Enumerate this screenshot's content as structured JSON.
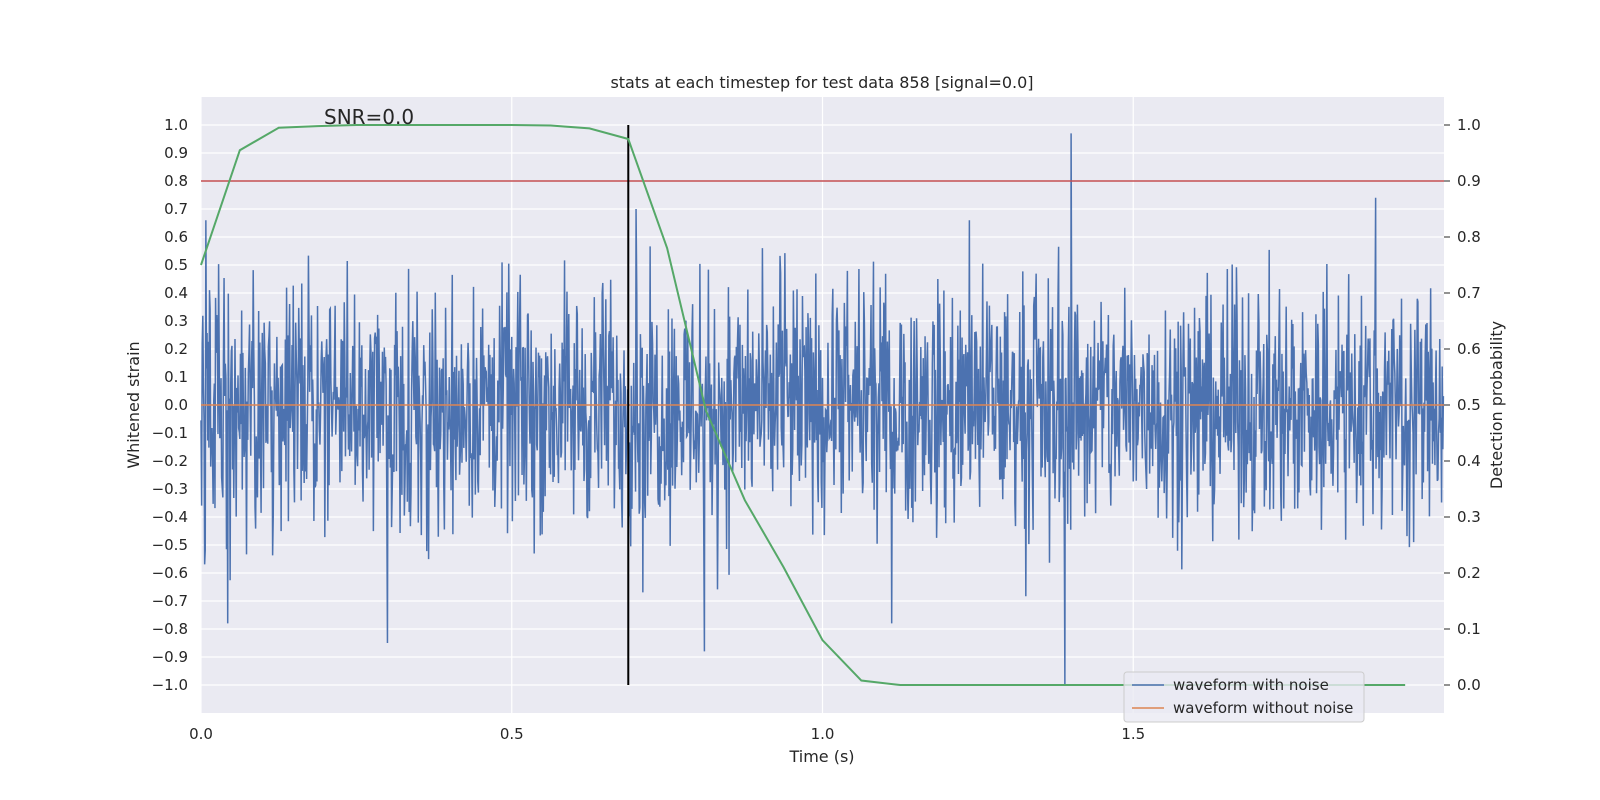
{
  "chart_data": {
    "type": "line",
    "title": "stats at each timestep for test data 858 [signal=0.0]",
    "xlabel": "Time (s)",
    "ylabel": "Whitened strain",
    "y2label": "Detection probability",
    "annotation": "SNR=0.0",
    "xlim": [
      0.0,
      2.0
    ],
    "ylim": [
      -1.1,
      1.1
    ],
    "y2lim": [
      -0.05,
      1.05
    ],
    "xticks": [
      0.0,
      0.5,
      1.0,
      1.5
    ],
    "xtick_labels": [
      "0.0",
      "0.5",
      "1.0",
      "1.5"
    ],
    "yticks": [
      1.0,
      0.9,
      0.8,
      0.7,
      0.6,
      0.5,
      0.4,
      0.3,
      0.2,
      0.1,
      0.0,
      -0.1,
      -0.2,
      -0.3,
      -0.4,
      -0.5,
      -0.6,
      -0.7,
      -0.8,
      -0.9,
      -1.0
    ],
    "ytick_labels": [
      "1.0",
      "0.9",
      "0.8",
      "0.7",
      "0.6",
      "0.5",
      "0.4",
      "0.3",
      "0.2",
      "0.1",
      "0.0",
      "−0.1",
      "−0.2",
      "−0.3",
      "−0.4",
      "−0.5",
      "−0.6",
      "−0.7",
      "−0.8",
      "−0.9",
      "−1.0"
    ],
    "y2ticks": [
      1.0,
      0.9,
      0.8,
      0.7,
      0.6,
      0.5,
      0.4,
      0.3,
      0.2,
      0.1,
      0.0
    ],
    "y2tick_labels": [
      "1.0",
      "0.9",
      "0.8",
      "0.7",
      "0.6",
      "0.5",
      "0.4",
      "0.3",
      "0.2",
      "0.1",
      "0.0"
    ],
    "series": [
      {
        "name": "waveform with noise",
        "color": "#4c72b0",
        "axis": "left",
        "description": "whitened noise, roughly uniform amplitude within about ±0.6, with spikes near 0.97 at t≈1.40, −1.0 at t≈1.39, 0.74 at t≈1.89, −0.85 at t≈0.30",
        "n_samples": 2048,
        "spikes": [
          {
            "x": 1.4,
            "y": 0.97
          },
          {
            "x": 1.39,
            "y": -1.0
          },
          {
            "x": 1.89,
            "y": 0.74
          },
          {
            "x": 0.3,
            "y": -0.85
          },
          {
            "x": 0.7,
            "y": 0.7
          },
          {
            "x": 0.81,
            "y": -0.88
          }
        ]
      },
      {
        "name": "waveform without noise",
        "color": "#dd8452",
        "axis": "left",
        "x": [
          0.0,
          2.0
        ],
        "y": [
          0.0,
          0.0
        ]
      },
      {
        "name": "detection probability",
        "color": "#55a868",
        "axis": "right",
        "x": [
          0.0,
          0.0625,
          0.125,
          0.1875,
          0.25,
          0.3125,
          0.375,
          0.4375,
          0.5,
          0.5625,
          0.625,
          0.6875,
          0.75,
          0.8125,
          0.875,
          0.9375,
          1.0,
          1.0625,
          1.125,
          1.1875,
          1.25,
          1.3125,
          1.375,
          1.4375,
          1.5,
          1.5625,
          1.625,
          1.6875,
          1.75,
          1.8125,
          1.875,
          1.9375
        ],
        "y": [
          0.75,
          0.955,
          0.995,
          0.998,
          1.0,
          1.0,
          1.0,
          1.0,
          1.0,
          0.999,
          0.994,
          0.975,
          0.78,
          0.49,
          0.33,
          0.21,
          0.08,
          0.008,
          0.0,
          0.0,
          0.0,
          0.0,
          0.0,
          0.0,
          0.0,
          0.0,
          0.0,
          0.0,
          0.0,
          0.0,
          0.0,
          0.0
        ]
      }
    ],
    "threshold_line": {
      "axis": "right",
      "y": 0.9,
      "color": "#c44e52"
    },
    "vertical_line": {
      "x": 0.6875,
      "y2_range": [
        0.0,
        1.0
      ],
      "color": "#000000"
    },
    "legend": {
      "position": "lower-right",
      "entries": [
        {
          "label": "waveform with noise",
          "color": "#4c72b0"
        },
        {
          "label": "waveform without noise",
          "color": "#dd8452"
        }
      ]
    },
    "grid": true,
    "background": "#eaeaf2"
  }
}
